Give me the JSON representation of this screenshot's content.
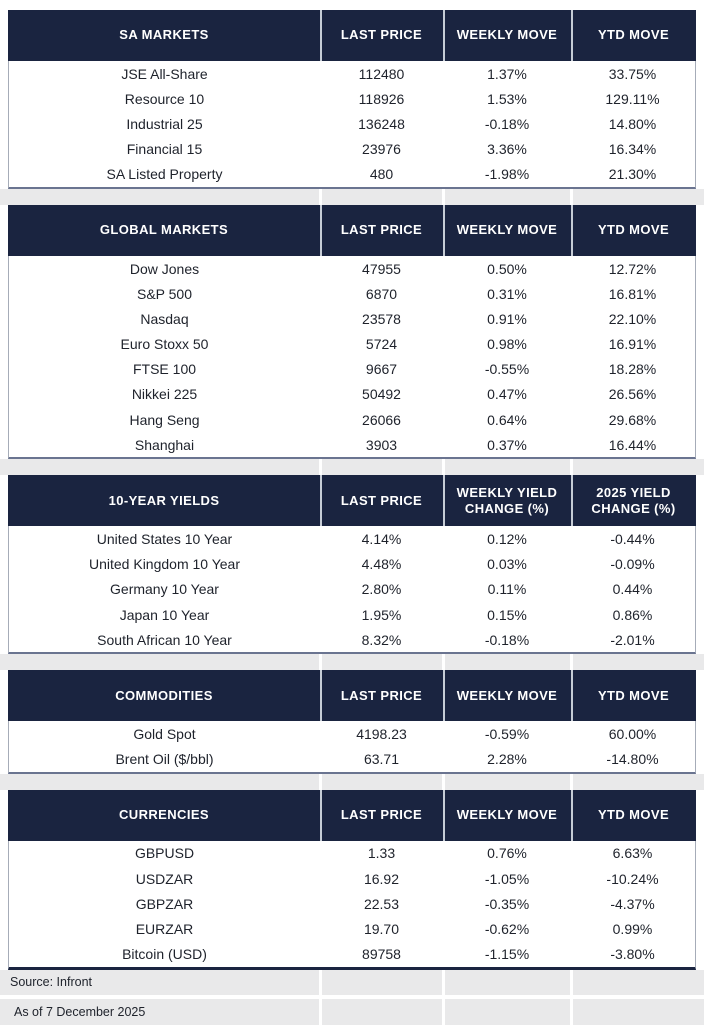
{
  "colors": {
    "header_bg": "#1a2440",
    "header_text": "#ffffff",
    "body_text": "#1e222b",
    "gap_stripe": "#e9e9ea",
    "table_border": "#a6acb8"
  },
  "chart_data": [
    {
      "type": "table",
      "id": "sa-markets",
      "title": "SA MARKETS",
      "columns": [
        "SA MARKETS",
        "LAST PRICE",
        "WEEKLY MOVE",
        "YTD MOVE"
      ],
      "rows": [
        [
          "JSE All-Share",
          "112480",
          "1.37%",
          "33.75%"
        ],
        [
          "Resource 10",
          "118926",
          "1.53%",
          "129.11%"
        ],
        [
          "Industrial 25",
          "136248",
          "-0.18%",
          "14.80%"
        ],
        [
          "Financial 15",
          "23976",
          "3.36%",
          "16.34%"
        ],
        [
          "SA Listed Property",
          "480",
          "-1.98%",
          "21.30%"
        ]
      ]
    },
    {
      "type": "table",
      "id": "global-markets",
      "title": "GLOBAL MARKETS",
      "columns": [
        "GLOBAL MARKETS",
        "LAST PRICE",
        "WEEKLY MOVE",
        "YTD MOVE"
      ],
      "rows": [
        [
          "Dow Jones",
          "47955",
          "0.50%",
          "12.72%"
        ],
        [
          "S&P 500",
          "6870",
          "0.31%",
          "16.81%"
        ],
        [
          "Nasdaq",
          "23578",
          "0.91%",
          "22.10%"
        ],
        [
          "Euro Stoxx 50",
          "5724",
          "0.98%",
          "16.91%"
        ],
        [
          "FTSE 100",
          "9667",
          "-0.55%",
          "18.28%"
        ],
        [
          "Nikkei 225",
          "50492",
          "0.47%",
          "26.56%"
        ],
        [
          "Hang Seng",
          "26066",
          "0.64%",
          "29.68%"
        ],
        [
          "Shanghai",
          "3903",
          "0.37%",
          "16.44%"
        ]
      ]
    },
    {
      "type": "table",
      "id": "ten-year-yields",
      "title": "10-YEAR YIELDS",
      "columns": [
        "10-YEAR YIELDS",
        "LAST PRICE",
        "WEEKLY YIELD CHANGE (%)",
        "2025 YIELD CHANGE (%)"
      ],
      "rows": [
        [
          "United States 10 Year",
          "4.14%",
          "0.12%",
          "-0.44%"
        ],
        [
          "United Kingdom 10 Year",
          "4.48%",
          "0.03%",
          "-0.09%"
        ],
        [
          "Germany 10 Year",
          "2.80%",
          "0.11%",
          "0.44%"
        ],
        [
          "Japan 10 Year",
          "1.95%",
          "0.15%",
          "0.86%"
        ],
        [
          "South African 10 Year",
          "8.32%",
          "-0.18%",
          "-2.01%"
        ]
      ]
    },
    {
      "type": "table",
      "id": "commodities",
      "title": "COMMODITIES",
      "columns": [
        "COMMODITIES",
        "LAST PRICE",
        "WEEKLY MOVE",
        "YTD MOVE"
      ],
      "rows": [
        [
          "Gold Spot",
          "4198.23",
          "-0.59%",
          "60.00%"
        ],
        [
          "Brent Oil ($/bbl)",
          "63.71",
          "2.28%",
          "-14.80%"
        ]
      ]
    },
    {
      "type": "table",
      "id": "currencies",
      "title": "CURRENCIES",
      "columns": [
        "CURRENCIES",
        "LAST PRICE",
        "WEEKLY MOVE",
        "YTD MOVE"
      ],
      "rows": [
        [
          "GBPUSD",
          "1.33",
          "0.76%",
          "6.63%"
        ],
        [
          "USDZAR",
          "16.92",
          "-1.05%",
          "-10.24%"
        ],
        [
          "GBPZAR",
          "22.53",
          "-0.35%",
          "-4.37%"
        ],
        [
          "EURZAR",
          "19.70",
          "-0.62%",
          "0.99%"
        ],
        [
          "Bitcoin (USD)",
          "89758",
          "-1.15%",
          "-3.80%"
        ]
      ]
    }
  ],
  "footer": {
    "source": "Source: Infront",
    "as_of": "As of 7 December 2025"
  }
}
